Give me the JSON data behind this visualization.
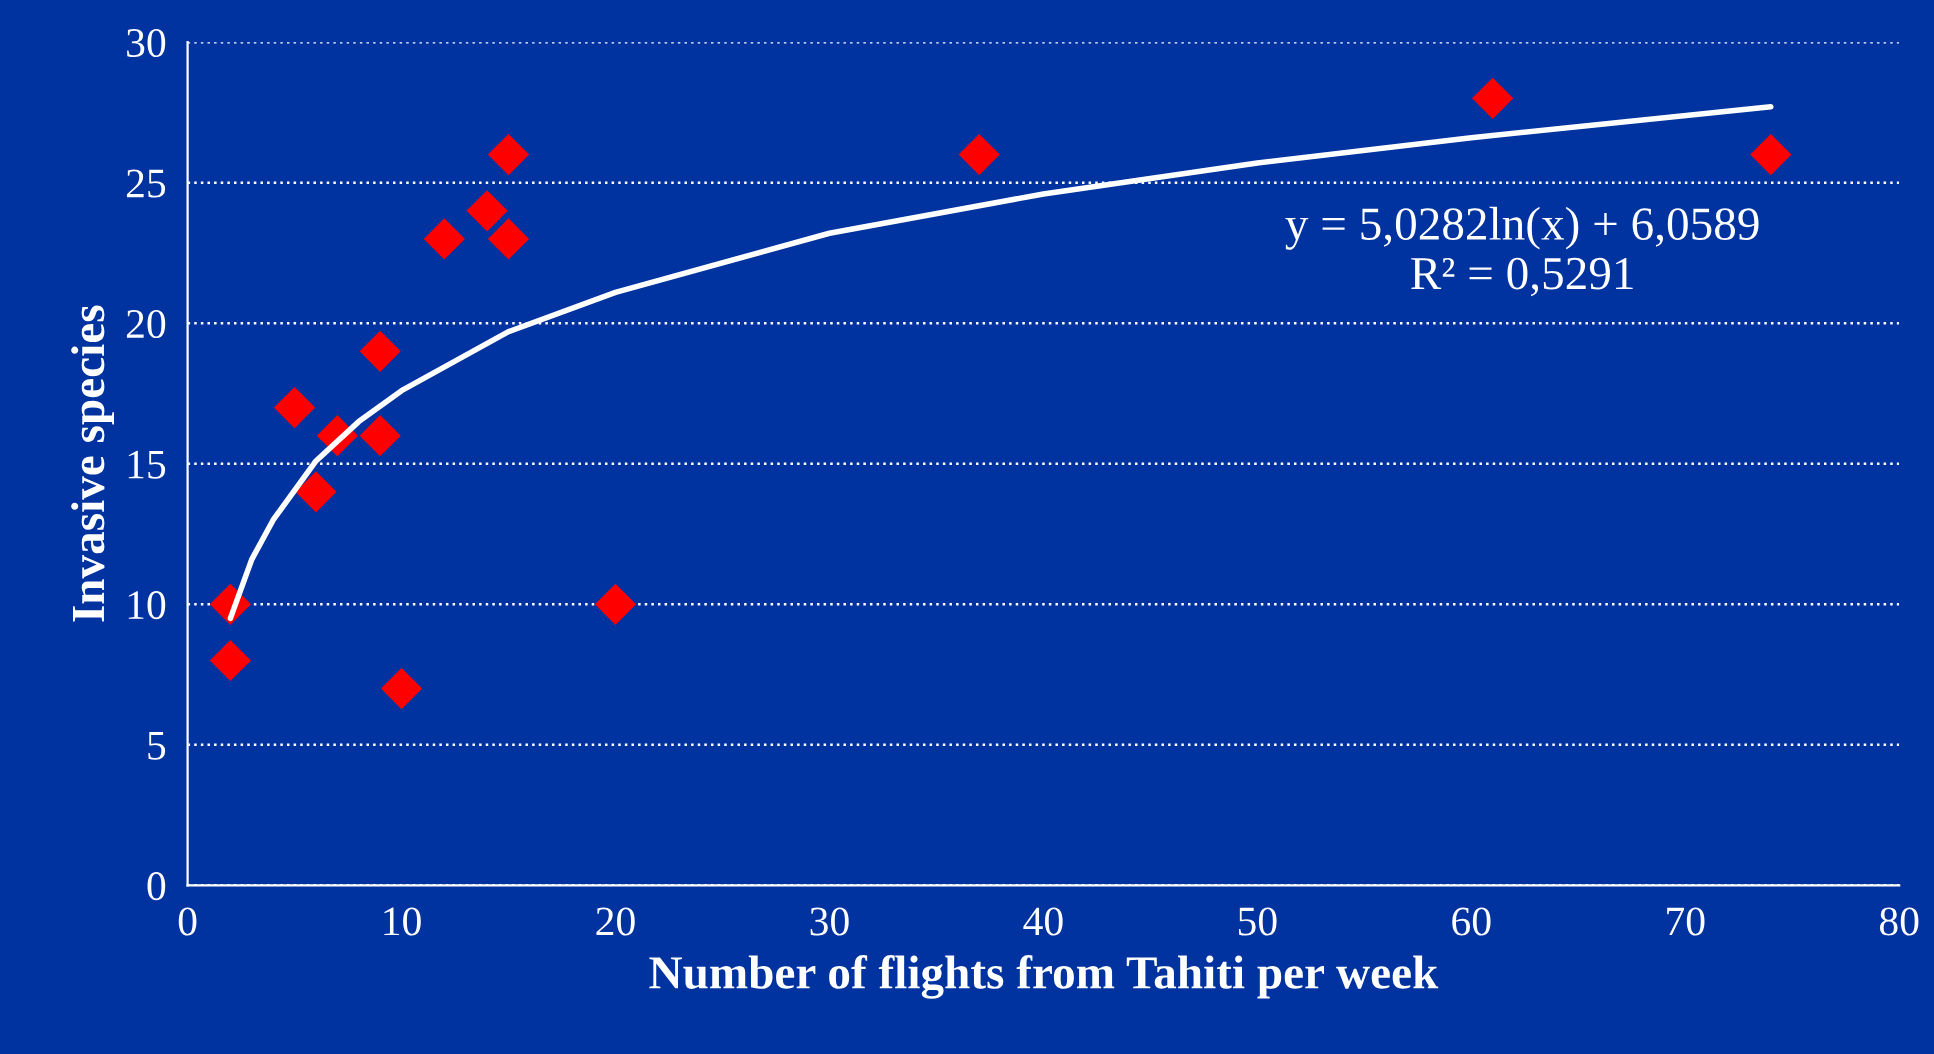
{
  "chart_data": {
    "type": "scatter",
    "xlabel": "Number of flights from Tahiti per week",
    "ylabel": "Invasive species",
    "x": [
      2,
      2,
      5,
      6,
      7,
      9,
      9,
      10,
      12,
      14,
      15,
      15,
      20,
      37,
      61,
      74
    ],
    "series": [
      {
        "color": "#ff0000",
        "marker": "diamond",
        "values": [
          10,
          8,
          17,
          14,
          16,
          16,
          19,
          7,
          23,
          24,
          23,
          26,
          10,
          26,
          28,
          26
        ]
      },
      {
        "type": "line",
        "color": "#ffffff",
        "marker": "none",
        "x": [
          2,
          3,
          4,
          6,
          8,
          10,
          15,
          20,
          30,
          40,
          50,
          60,
          74
        ],
        "values": [
          9.5,
          11.6,
          13.0,
          15.1,
          16.5,
          17.6,
          19.7,
          21.1,
          23.2,
          24.6,
          25.7,
          26.6,
          27.7
        ]
      }
    ],
    "annotations": [
      "y = 5,0282ln(x) + 6,0589\nR² = 0,5291"
    ],
    "xlim": [
      0,
      80
    ],
    "xticks": [
      0,
      10,
      20,
      30,
      40,
      50,
      60,
      70,
      80
    ],
    "ylim": [
      0,
      30
    ],
    "yticks": [
      0,
      5,
      10,
      15,
      20,
      25,
      30
    ],
    "grid": "y",
    "legend": false
  }
}
